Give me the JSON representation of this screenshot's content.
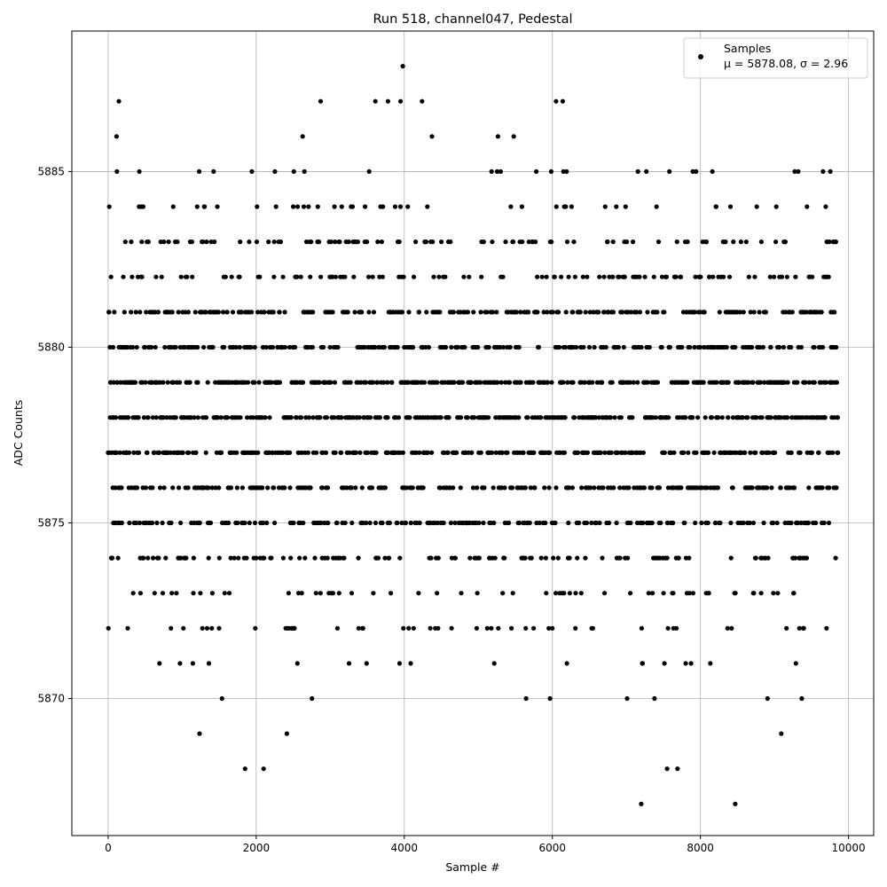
{
  "chart_data": {
    "type": "scatter",
    "title": "Run 518, channel047, Pedestal",
    "xlabel": "Sample #",
    "ylabel": "ADC Counts",
    "xlim": [
      -490,
      10340
    ],
    "ylim": [
      5866.1,
      5889.0
    ],
    "x_ticks": [
      0,
      2000,
      4000,
      6000,
      8000,
      10000
    ],
    "y_ticks": [
      5870,
      5875,
      5880,
      5885
    ],
    "grid": true,
    "legend_position": "top-right",
    "marker_color": "#000000",
    "grid_color": "#b0b0b0",
    "series": [
      {
        "name": "Samples",
        "stats_label": "μ = 5878.08, σ = 2.96",
        "mean": 5878.08,
        "std": 2.96,
        "n_samples": 10000,
        "x_range": [
          0,
          9860
        ],
        "y_levels": [
          5867,
          5868,
          5869,
          5870,
          5871,
          5872,
          5873,
          5874,
          5875,
          5876,
          5877,
          5878,
          5879,
          5880,
          5881,
          5882,
          5883,
          5884,
          5885,
          5886,
          5887,
          5888
        ],
        "outliers": [
          {
            "x": 3980,
            "y": 5888
          },
          {
            "x": 145,
            "y": 5887
          },
          {
            "x": 2870,
            "y": 5887
          },
          {
            "x": 3610,
            "y": 5887
          },
          {
            "x": 3780,
            "y": 5887
          },
          {
            "x": 3950,
            "y": 5887
          },
          {
            "x": 4240,
            "y": 5887
          },
          {
            "x": 6050,
            "y": 5887
          },
          {
            "x": 6140,
            "y": 5887
          },
          {
            "x": 1850,
            "y": 5868
          },
          {
            "x": 2100,
            "y": 5868
          },
          {
            "x": 7550,
            "y": 5868
          },
          {
            "x": 7690,
            "y": 5868
          },
          {
            "x": 7200,
            "y": 5867
          },
          {
            "x": 8470,
            "y": 5867
          }
        ]
      }
    ]
  }
}
